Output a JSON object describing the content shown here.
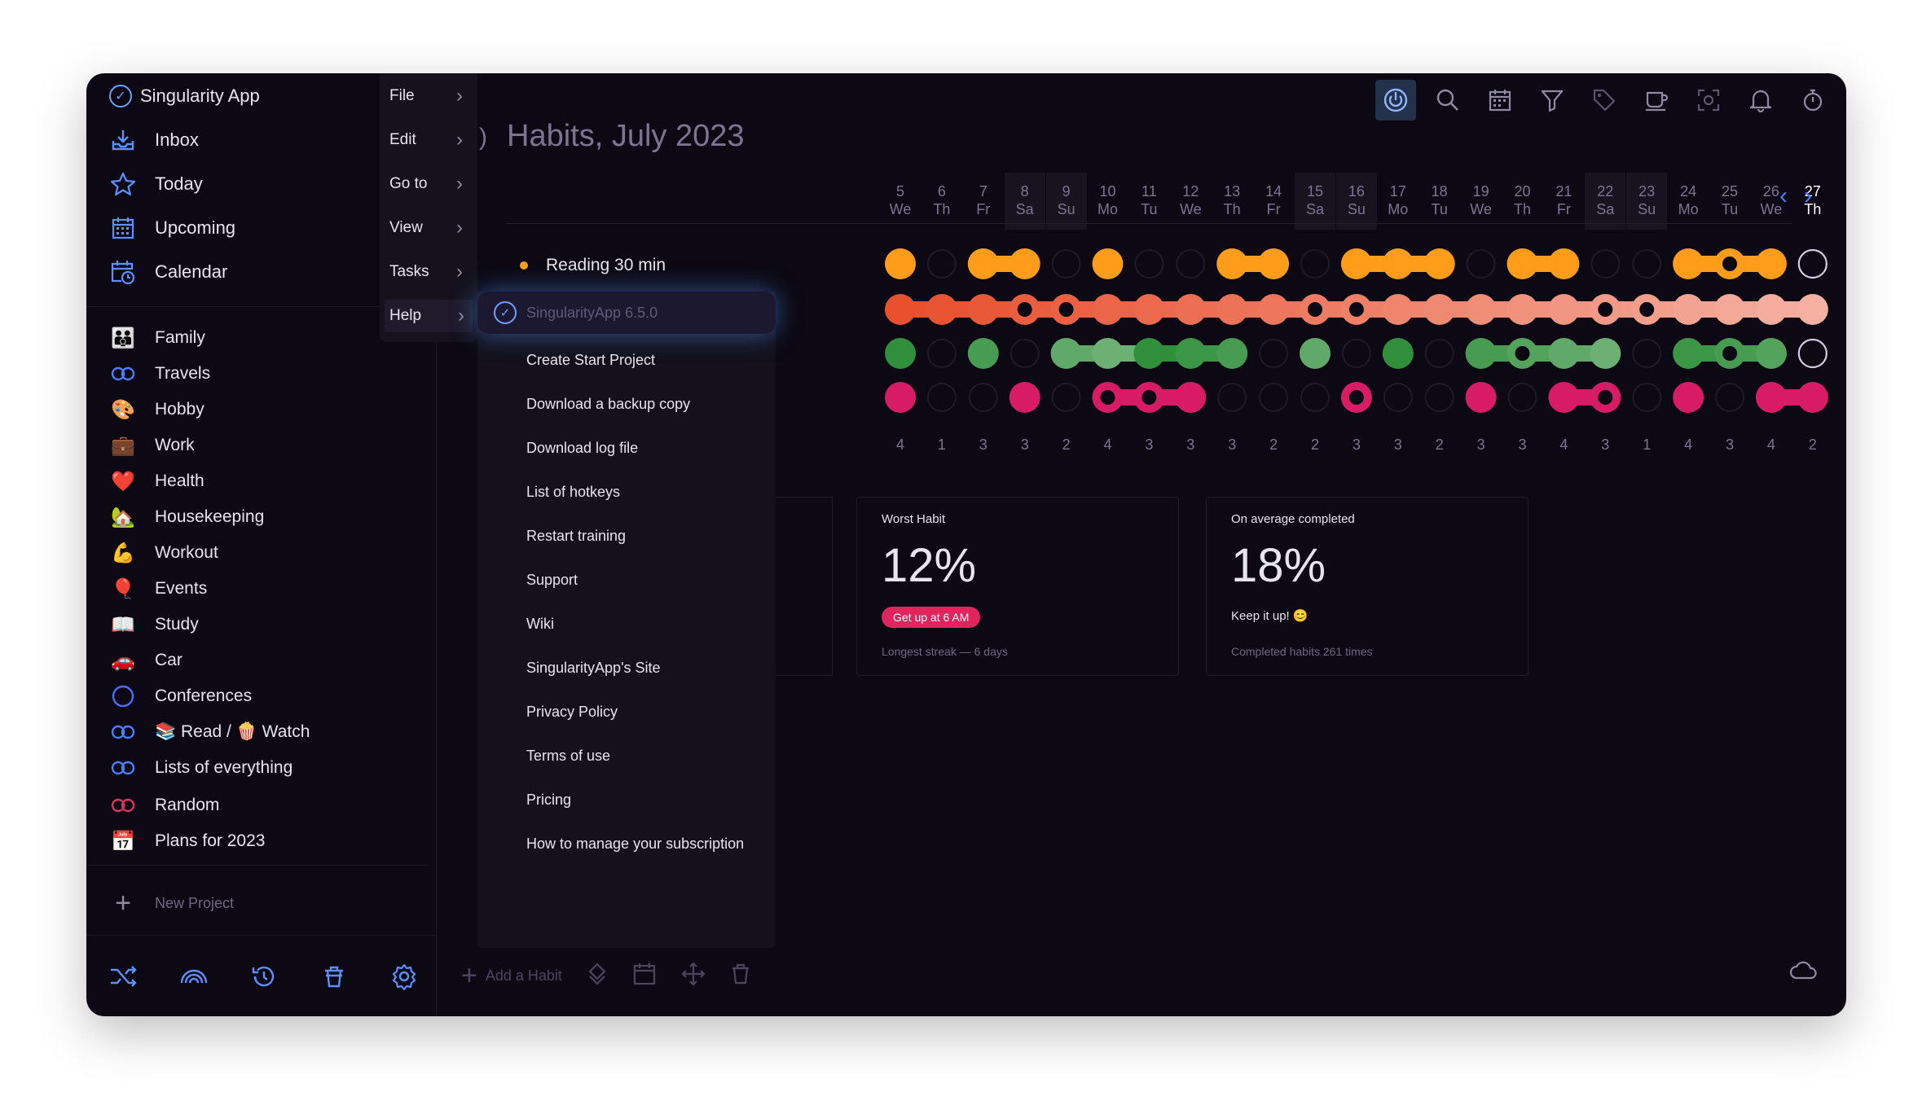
{
  "app": {
    "title": "Singularity App"
  },
  "sidebar": {
    "nav": [
      {
        "label": "Inbox",
        "icon": "inbox-icon"
      },
      {
        "label": "Today",
        "icon": "star-icon"
      },
      {
        "label": "Upcoming",
        "icon": "calendar-grid-icon"
      },
      {
        "label": "Calendar",
        "icon": "calendar-clock-icon"
      }
    ],
    "projects": [
      {
        "label": "Family",
        "icon": "family-emoji-icon",
        "glyph": "👪"
      },
      {
        "label": "Travels",
        "icon": "infinity-loop-icon",
        "glyph": ""
      },
      {
        "label": "Hobby",
        "icon": "palette-emoji-icon",
        "glyph": "🎨"
      },
      {
        "label": "Work",
        "icon": "briefcase-emoji-icon",
        "glyph": "💼"
      },
      {
        "label": "Health",
        "icon": "heart-emoji-icon",
        "glyph": "❤️"
      },
      {
        "label": "Housekeeping",
        "icon": "house-emoji-icon",
        "glyph": "🏡"
      },
      {
        "label": "Workout",
        "icon": "muscle-emoji-icon",
        "glyph": "💪"
      },
      {
        "label": "Events",
        "icon": "balloon-emoji-icon",
        "glyph": "🎈"
      },
      {
        "label": "Study",
        "icon": "book-emoji-icon",
        "glyph": "📖"
      },
      {
        "label": "Car",
        "icon": "car-emoji-icon",
        "glyph": "🚗"
      },
      {
        "label": "Conferences",
        "icon": "circle-icon",
        "glyph": ""
      },
      {
        "label": "📚 Read / 🍿 Watch",
        "icon": "infinity-loop-icon",
        "glyph": ""
      },
      {
        "label": "Lists of everything",
        "icon": "infinity-loop-icon",
        "glyph": ""
      },
      {
        "label": "Random",
        "icon": "infinity-loop-red-icon",
        "glyph": ""
      },
      {
        "label": "Plans for 2023",
        "icon": "calendar-emoji-icon",
        "glyph": "📅"
      }
    ],
    "new_project": "New Project"
  },
  "menubar": {
    "items": [
      "File",
      "Edit",
      "Go to",
      "View",
      "Tasks",
      "Help"
    ],
    "active": "Help"
  },
  "help_menu": {
    "version": "SingularityApp 6.5.0",
    "items": [
      "Create Start Project",
      "Download a backup copy",
      "Download log file",
      "List of hotkeys",
      "Restart training",
      "Support",
      "Wiki",
      "SingularityApp's Site",
      "Privacy Policy",
      "Terms of use",
      "Pricing",
      "How to manage your subscription"
    ]
  },
  "main": {
    "title": "Habits, July 2023",
    "days": [
      {
        "num": "5",
        "wd": "We",
        "weekend": false
      },
      {
        "num": "6",
        "wd": "Th",
        "weekend": false
      },
      {
        "num": "7",
        "wd": "Fr",
        "weekend": false
      },
      {
        "num": "8",
        "wd": "Sa",
        "weekend": true
      },
      {
        "num": "9",
        "wd": "Su",
        "weekend": true
      },
      {
        "num": "10",
        "wd": "Mo",
        "weekend": false
      },
      {
        "num": "11",
        "wd": "Tu",
        "weekend": false
      },
      {
        "num": "12",
        "wd": "We",
        "weekend": false
      },
      {
        "num": "13",
        "wd": "Th",
        "weekend": false
      },
      {
        "num": "14",
        "wd": "Fr",
        "weekend": false
      },
      {
        "num": "15",
        "wd": "Sa",
        "weekend": true
      },
      {
        "num": "16",
        "wd": "Su",
        "weekend": true
      },
      {
        "num": "17",
        "wd": "Mo",
        "weekend": false
      },
      {
        "num": "18",
        "wd": "Tu",
        "weekend": false
      },
      {
        "num": "19",
        "wd": "We",
        "weekend": false
      },
      {
        "num": "20",
        "wd": "Th",
        "weekend": false
      },
      {
        "num": "21",
        "wd": "Fr",
        "weekend": false
      },
      {
        "num": "22",
        "wd": "Sa",
        "weekend": true
      },
      {
        "num": "23",
        "wd": "Su",
        "weekend": true
      },
      {
        "num": "24",
        "wd": "Mo",
        "weekend": false
      },
      {
        "num": "25",
        "wd": "Tu",
        "weekend": false
      },
      {
        "num": "26",
        "wd": "We",
        "weekend": false
      },
      {
        "num": "27",
        "wd": "Th",
        "weekend": false,
        "today": true
      }
    ],
    "habits": [
      {
        "name": "Reading 30 min",
        "color": "#ff9d1a",
        "marks": [
          1,
          0,
          1,
          1,
          0,
          1,
          0,
          0,
          1,
          1,
          0,
          1,
          1,
          1,
          0,
          1,
          1,
          0,
          0,
          1,
          2,
          1,
          3
        ]
      },
      {
        "name": "",
        "color": "#f2754e",
        "marks": [
          1,
          1,
          1,
          2,
          2,
          1,
          1,
          1,
          1,
          1,
          2,
          2,
          1,
          1,
          1,
          1,
          1,
          2,
          2,
          1,
          1,
          1,
          1
        ]
      },
      {
        "name": "",
        "color": "#2f8f3a",
        "marks": [
          1,
          0,
          1,
          0,
          1,
          1,
          1,
          1,
          1,
          0,
          1,
          0,
          1,
          0,
          1,
          2,
          1,
          1,
          0,
          1,
          2,
          1,
          3
        ]
      },
      {
        "name": "",
        "color": "#d81b66",
        "marks": [
          1,
          0,
          0,
          1,
          0,
          2,
          2,
          1,
          0,
          0,
          0,
          2,
          0,
          0,
          1,
          0,
          1,
          2,
          0,
          1,
          0,
          1,
          1
        ]
      }
    ],
    "counts": [
      "4",
      "1",
      "3",
      "3",
      "2",
      "4",
      "3",
      "3",
      "3",
      "2",
      "2",
      "3",
      "3",
      "2",
      "3",
      "3",
      "4",
      "3",
      "1",
      "4",
      "3",
      "4",
      "2"
    ],
    "cards": [
      {
        "label": "Worst Habit",
        "value": "12%",
        "pill": "Get up at 6 AM",
        "sub": "Longest streak — 6 days"
      },
      {
        "label": "On average completed",
        "value": "18%",
        "note": "Keep it up! 😊",
        "sub": "Completed habits 261 times"
      }
    ],
    "add_habit": "Add a Habit"
  },
  "colors": {
    "accent": "#4a7dff",
    "bg": "#0c0914"
  }
}
